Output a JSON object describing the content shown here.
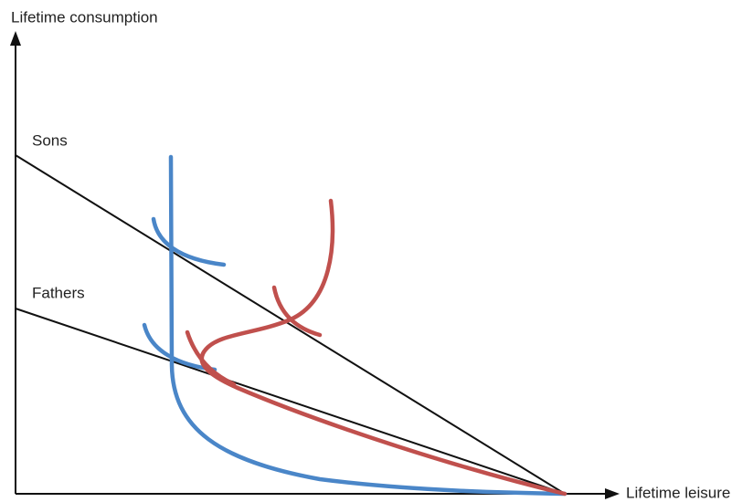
{
  "y_axis_label": "Lifetime consumption",
  "x_axis_label": "Lifetime leisure",
  "lines": [
    {
      "label": "Sons"
    },
    {
      "label": "Fathers"
    }
  ]
}
